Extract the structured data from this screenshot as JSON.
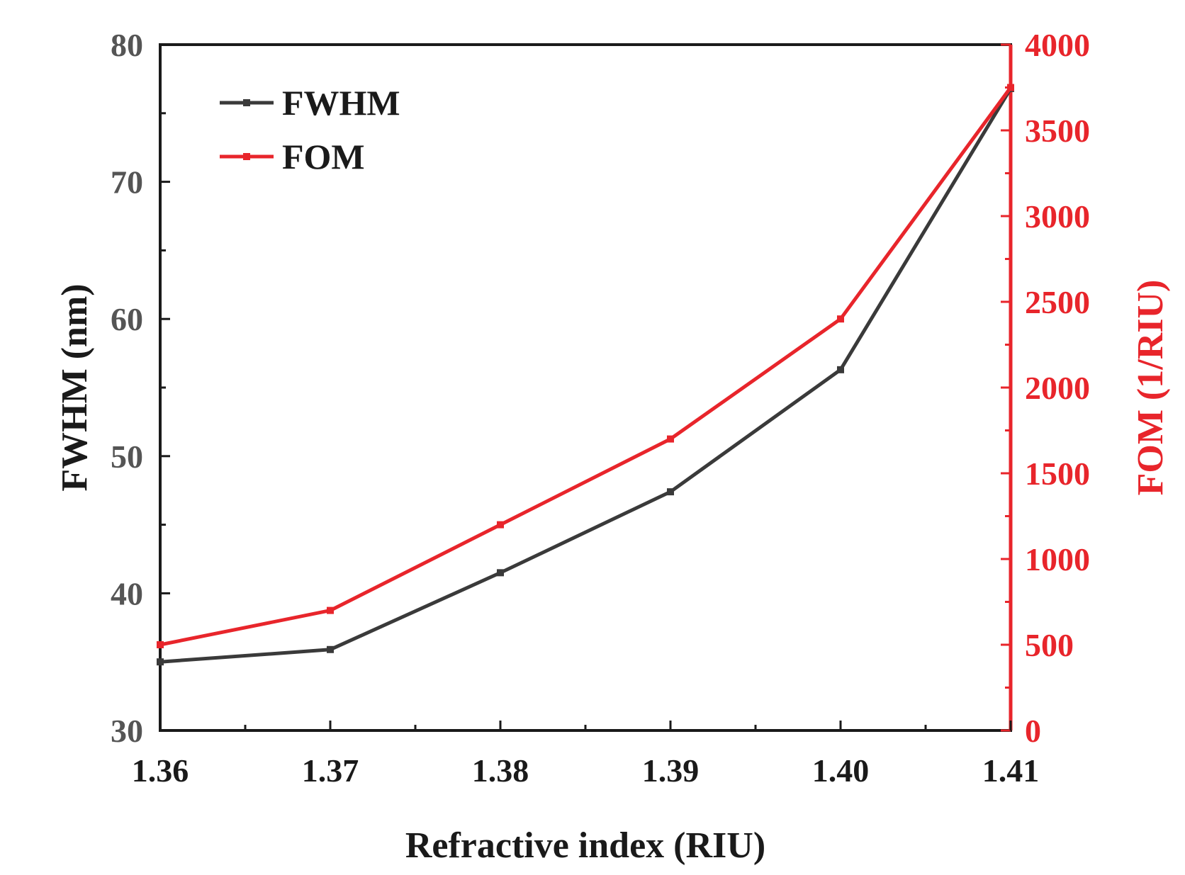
{
  "chart_data": {
    "type": "line",
    "title": "",
    "xlabel": "Refractive index (RIU)",
    "ylabel": "FWHM (nm)",
    "y2label": "FOM (1/RIU)",
    "x": [
      1.36,
      1.37,
      1.38,
      1.39,
      1.4,
      1.41
    ],
    "x_tick_labels": [
      "1.36",
      "1.37",
      "1.38",
      "1.39",
      "1.40",
      "1.41"
    ],
    "xlim": [
      1.36,
      1.41
    ],
    "ylim": [
      30,
      80
    ],
    "y_ticks": [
      30,
      40,
      50,
      60,
      70,
      80
    ],
    "y_tick_labels": [
      "30",
      "40",
      "50",
      "60",
      "70",
      "80"
    ],
    "y2lim": [
      0,
      4000
    ],
    "y2_ticks": [
      0,
      500,
      1000,
      1500,
      2000,
      2500,
      3000,
      3500,
      4000
    ],
    "y2_tick_labels": [
      "0",
      "500",
      "1000",
      "1500",
      "2000",
      "2500",
      "3000",
      "3500",
      "4000"
    ],
    "grid": false,
    "legend_position": "top-left",
    "series": [
      {
        "name": "FWHM",
        "axis": "left",
        "color": "#3a3a3a",
        "values": [
          35.0,
          35.9,
          41.5,
          47.4,
          56.3,
          76.8
        ]
      },
      {
        "name": "FOM",
        "axis": "right",
        "color": "#e8252b",
        "values": [
          500,
          700,
          1200,
          1700,
          2400,
          3750
        ]
      }
    ]
  }
}
